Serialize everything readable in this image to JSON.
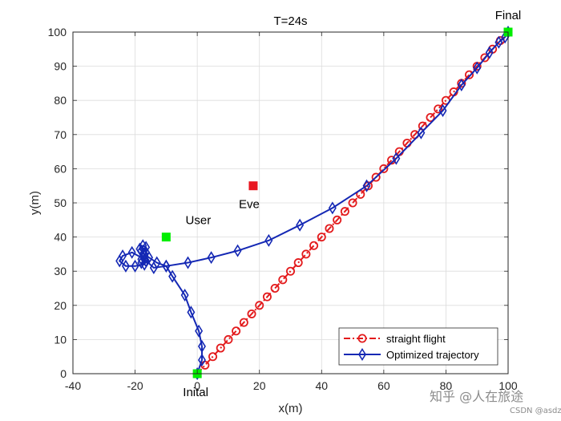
{
  "chart_data": {
    "type": "line",
    "title": "T=24s",
    "xlabel": "x(m)",
    "ylabel": "y(m)",
    "xlim": [
      -40,
      100
    ],
    "ylim": [
      0,
      100
    ],
    "xticks": [
      -40,
      -20,
      0,
      20,
      40,
      60,
      80,
      100
    ],
    "yticks": [
      0,
      10,
      20,
      30,
      40,
      50,
      60,
      70,
      80,
      90,
      100
    ],
    "grid": true,
    "legend_position": "bottom-right",
    "colors": {
      "straight": "#e31a1c",
      "optimized": "#1428b4",
      "user": "#00ee00",
      "eve": "#e8141e",
      "endpoint": "#00ee00"
    },
    "series": [
      {
        "name": "straight flight",
        "style": "dash-dot, circle markers",
        "x": [
          0,
          2.5,
          5,
          7.5,
          10,
          12.5,
          15,
          17.5,
          20,
          22.5,
          25,
          27.5,
          30,
          32.5,
          35,
          37.5,
          40,
          42.5,
          45,
          47.5,
          50,
          52.5,
          55,
          57.5,
          60,
          62.5,
          65,
          67.5,
          70,
          72.5,
          75,
          77.5,
          80,
          82.5,
          85,
          87.5,
          90,
          92.5,
          95,
          97.5,
          100
        ],
        "y": [
          0,
          2.5,
          5,
          7.5,
          10,
          12.5,
          15,
          17.5,
          20,
          22.5,
          25,
          27.5,
          30,
          32.5,
          35,
          37.5,
          40,
          42.5,
          45,
          47.5,
          50,
          52.5,
          55,
          57.5,
          60,
          62.5,
          65,
          67.5,
          70,
          72.5,
          75,
          77.5,
          80,
          82.5,
          85,
          87.5,
          90,
          92.5,
          95,
          97.5,
          100
        ]
      },
      {
        "name": "Optimized trajectory",
        "style": "solid, diamond markers",
        "x": [
          0,
          1.5,
          1.5,
          0.5,
          -2,
          -4,
          -8,
          -10,
          -13,
          -15.5,
          -17,
          -18,
          -18.5,
          -17.5,
          -16.5,
          -16.5,
          -17,
          -18,
          -16.5,
          -18,
          -17,
          -20,
          -23,
          -25,
          -24,
          -21,
          -17,
          -14,
          -10,
          -3,
          4.5,
          13,
          23,
          33,
          43.5,
          54.5,
          64,
          72,
          79,
          85,
          90,
          94,
          97,
          99,
          100
        ],
        "y": [
          0,
          4,
          8,
          12.5,
          18,
          23,
          28.5,
          31.5,
          32.5,
          34,
          35,
          36,
          36.5,
          37.5,
          37,
          35.5,
          34.5,
          33.5,
          33,
          32.5,
          32,
          31.5,
          31.5,
          33,
          34.5,
          35.5,
          33.5,
          31,
          31.5,
          32.5,
          34,
          36,
          39,
          43.5,
          48.5,
          55,
          63,
          70.5,
          77,
          84.5,
          89.5,
          94,
          97,
          98.5,
          100
        ]
      }
    ],
    "points": [
      {
        "label": "User",
        "x": -10,
        "y": 40
      },
      {
        "label": "Eve",
        "x": 18,
        "y": 55
      },
      {
        "label": "Inital",
        "x": 0,
        "y": 0
      },
      {
        "label": "Final",
        "x": 100,
        "y": 100
      }
    ]
  },
  "watermark": {
    "main": "知乎 @人在旅途",
    "sub": "CSDN @asdzdf"
  }
}
